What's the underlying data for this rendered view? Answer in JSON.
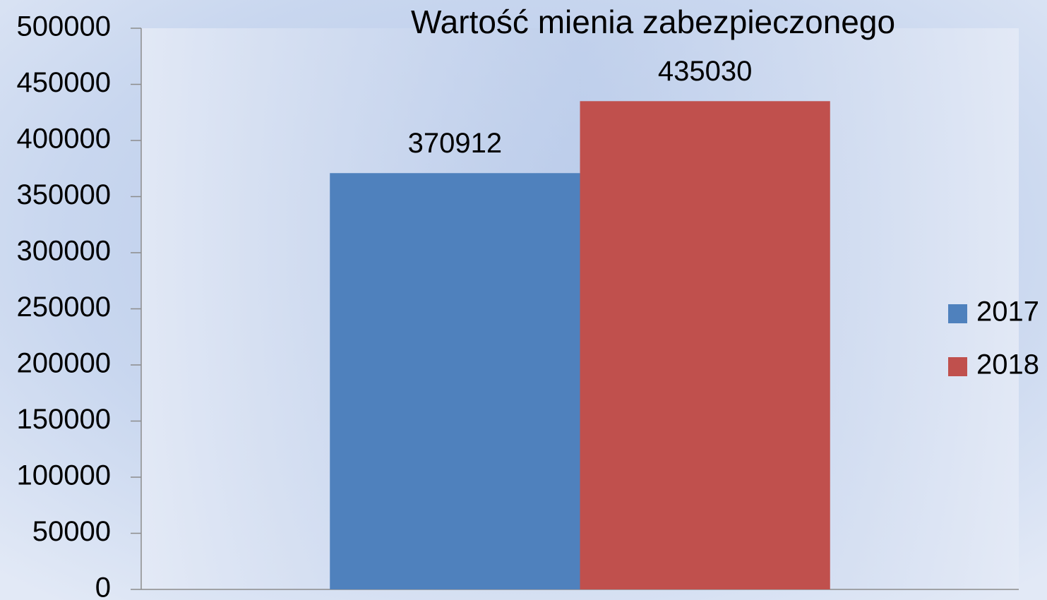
{
  "chart_data": {
    "type": "bar",
    "title": "Wartość mienia zabezpieczonego",
    "categories": [
      null
    ],
    "series": [
      {
        "name": "2017",
        "color": "#4f81bd",
        "values": [
          370912
        ]
      },
      {
        "name": "2018",
        "color": "#c0504d",
        "values": [
          435030
        ]
      }
    ],
    "ylim": [
      0,
      500000
    ],
    "yticks": [
      0,
      50000,
      100000,
      150000,
      200000,
      250000,
      300000,
      350000,
      400000,
      450000,
      500000
    ],
    "grid": false,
    "legend": "right"
  }
}
